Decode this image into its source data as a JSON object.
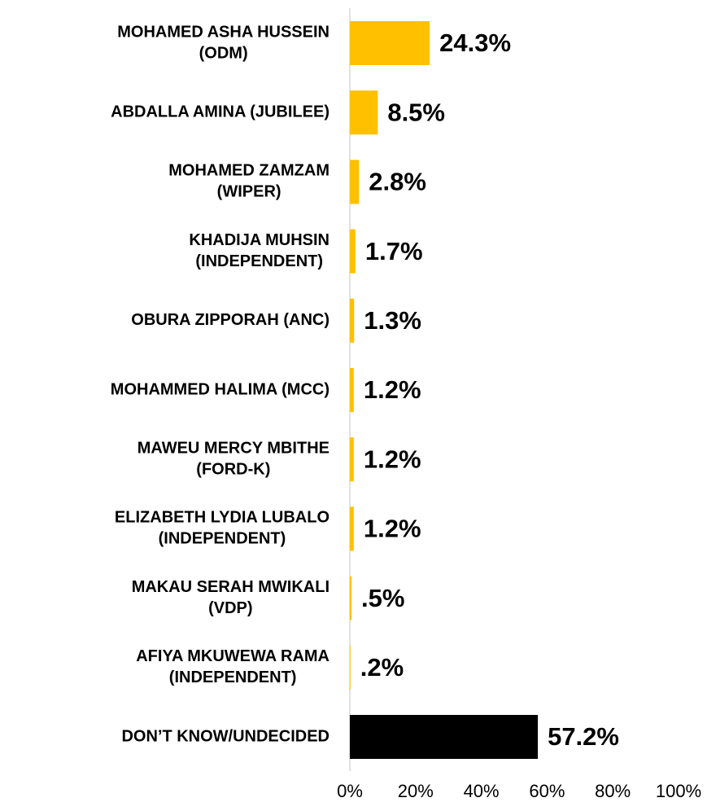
{
  "chart_data": {
    "type": "bar",
    "orientation": "horizontal",
    "categories": [
      [
        "MOHAMED ASHA HUSSEIN",
        "(ODM)"
      ],
      [
        "ABDALLA AMINA (JUBILEE)"
      ],
      [
        "MOHAMED ZAMZAM",
        "(WIPER)"
      ],
      [
        "KHADIJA  MUHSIN",
        "(INDEPENDENT)"
      ],
      [
        "OBURA ZIPPORAH (ANC)"
      ],
      [
        "MOHAMMED HALIMA (MCC)"
      ],
      [
        "MAWEU MERCY MBITHE",
        "(FORD-K)"
      ],
      [
        "ELIZABETH LYDIA LUBALO",
        "(INDEPENDENT)"
      ],
      [
        "MAKAU SERAH MWIKALI",
        "(VDP)"
      ],
      [
        "AFIYA MKUWEWA RAMA",
        "(INDEPENDENT)"
      ],
      [
        "DON’T KNOW/UNDECIDED"
      ]
    ],
    "values": [
      24.3,
      8.5,
      2.8,
      1.7,
      1.3,
      1.2,
      1.2,
      1.2,
      0.5,
      0.2,
      57.2
    ],
    "value_labels": [
      "24.3%",
      "8.5%",
      "2.8%",
      "1.7%",
      "1.3%",
      "1.2%",
      "1.2%",
      "1.2%",
      ".5%",
      ".2%",
      "57.2%"
    ],
    "colors": [
      "#FFC000",
      "#FFC000",
      "#FFC000",
      "#FFC000",
      "#FFC000",
      "#FFC000",
      "#FFC000",
      "#FFC000",
      "#FFC000",
      "#FFC000",
      "#000000"
    ],
    "xlim": [
      0,
      100
    ],
    "xticks": [
      {
        "value": 0,
        "label": "0%"
      },
      {
        "value": 20,
        "label": "20%"
      },
      {
        "value": 40,
        "label": "40%"
      },
      {
        "value": 60,
        "label": "60%"
      },
      {
        "value": 80,
        "label": "80%"
      },
      {
        "value": 100,
        "label": "100%"
      }
    ]
  }
}
